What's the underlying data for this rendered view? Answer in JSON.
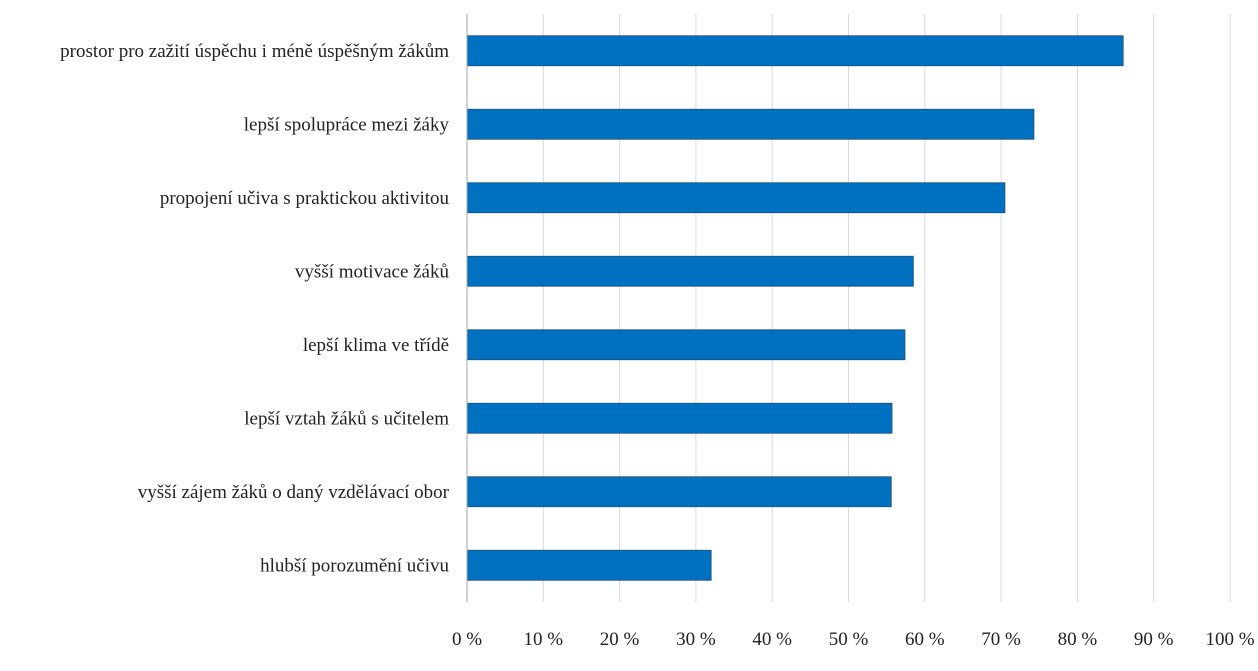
{
  "colors": {
    "bar": "#0070C0",
    "bar_edge": "#1F4E79",
    "grid": "#D9D9D9",
    "text": "#222222",
    "background": "#FFFFFF"
  },
  "chart_data": {
    "type": "bar",
    "orientation": "horizontal",
    "title": "",
    "xlabel": "",
    "ylabel": "",
    "grid": true,
    "legend": "none",
    "xlim": [
      0,
      100
    ],
    "x_ticks": [
      0,
      10,
      20,
      30,
      40,
      50,
      60,
      70,
      80,
      90,
      100
    ],
    "x_tick_labels": [
      "0 %",
      "10 %",
      "20 %",
      "30 %",
      "40 %",
      "50 %",
      "60 %",
      "70 %",
      "80 %",
      "90 %",
      "100 %"
    ],
    "categories": [
      "prostor pro zažití úspěchu i méně úspěšným žákům",
      "lepší spolupráce mezi žáky",
      "propojení učiva s praktickou aktivitou",
      "vyšší motivace žáků",
      "lepší klima ve třídě",
      "lepší vztah žáků s učitelem",
      "vyšší zájem žáků o daný vzdělávací obor",
      "hlubší porozumění učivu"
    ],
    "values": [
      86,
      74.3,
      70.5,
      58.5,
      57.4,
      55.7,
      55.6,
      32
    ]
  }
}
